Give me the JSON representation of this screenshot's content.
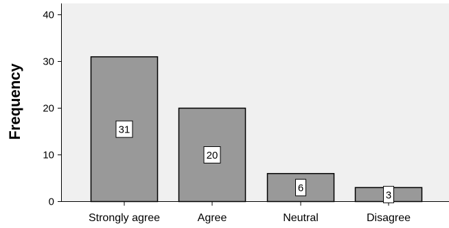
{
  "chart_data": {
    "type": "bar",
    "title": "",
    "xlabel": "",
    "ylabel": "Frequency",
    "categories": [
      "Strongly agree",
      "Agree",
      "Neutral",
      "Disagree"
    ],
    "values": [
      31,
      20,
      6,
      3
    ],
    "ylim": [
      0,
      42
    ],
    "yticks": [
      0,
      10,
      20,
      30,
      40
    ],
    "grid": false,
    "colors": {
      "plot_background": "#f0f0f0",
      "bar_fill": "#999999",
      "bar_stroke": "#000000",
      "axis": "#000000",
      "label_box_fill": "#ffffff"
    }
  }
}
